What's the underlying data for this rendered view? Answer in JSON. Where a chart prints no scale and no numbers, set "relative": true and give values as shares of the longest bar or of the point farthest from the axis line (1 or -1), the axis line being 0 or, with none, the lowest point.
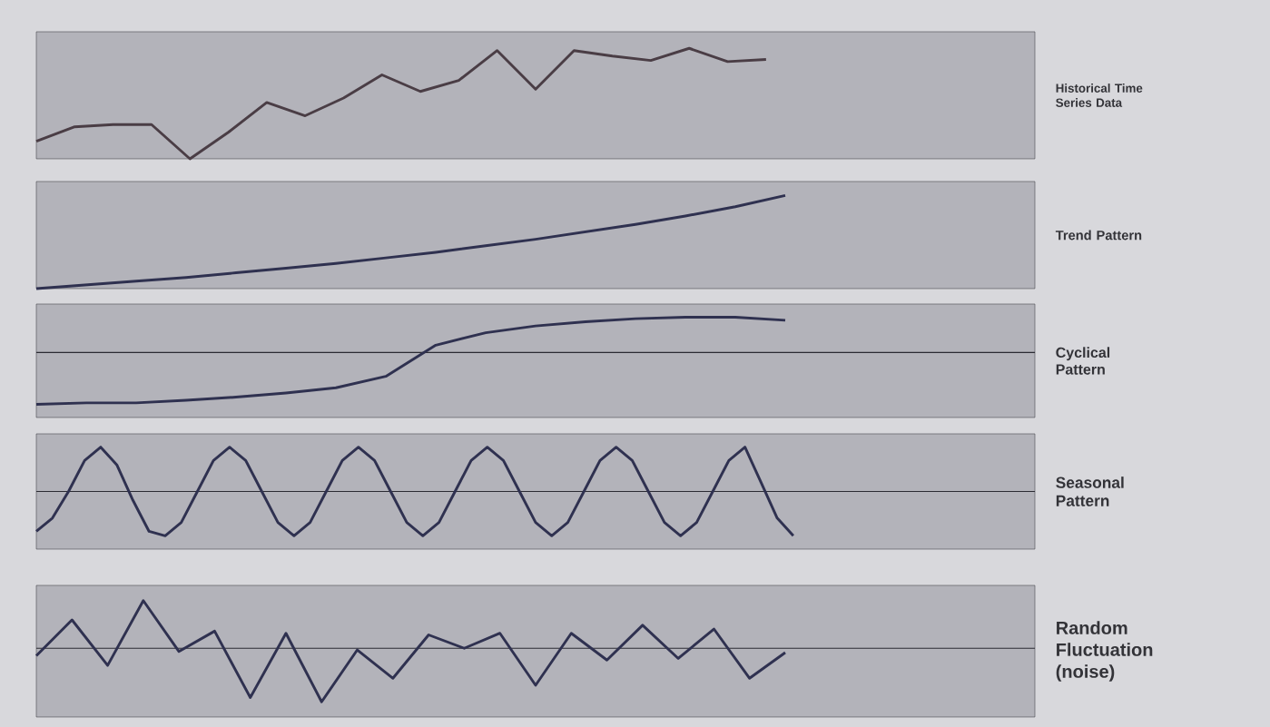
{
  "chart_data": [
    {
      "type": "line",
      "annotations": [
        "Historical Time Series Data"
      ],
      "relative": true,
      "color": "#4a3d45",
      "categories": [
        null,
        null,
        null,
        null,
        null,
        null,
        null,
        null,
        null,
        null,
        null,
        null,
        null,
        null,
        null,
        null,
        null,
        null,
        null,
        null,
        null,
        null,
        null,
        null,
        null,
        null,
        null
      ],
      "values": [
        0.16,
        0.29,
        0.31,
        0.31,
        0,
        0.24,
        0.51,
        0.39,
        0.55,
        0.76,
        0.61,
        0.71,
        0.98,
        0.63,
        0.98,
        0.93,
        0.89,
        1,
        0.88,
        0.9,
        null,
        null,
        null,
        null,
        null,
        null,
        null
      ]
    },
    {
      "type": "line",
      "annotations": [
        "Trend Pattern"
      ],
      "relative": true,
      "color": "#2f3150",
      "categories": [
        null,
        null,
        null,
        null,
        null,
        null,
        null,
        null,
        null,
        null,
        null,
        null,
        null,
        null,
        null,
        null,
        null,
        null,
        null,
        null,
        null
      ],
      "values": [
        0,
        0.04,
        0.08,
        0.12,
        0.17,
        0.22,
        0.27,
        0.33,
        0.39,
        0.46,
        0.53,
        0.61,
        0.69,
        0.78,
        0.88,
        1,
        null,
        null,
        null,
        null,
        null
      ]
    },
    {
      "type": "line",
      "annotations": [
        "Cyclical Pattern"
      ],
      "relative": true,
      "color": "#2f3150",
      "categories": [
        null,
        null,
        null,
        null,
        null,
        null,
        null,
        null,
        null,
        null,
        null,
        null,
        null,
        null,
        null,
        null,
        null,
        null,
        null,
        null,
        null
      ],
      "values": [
        -1,
        -0.97,
        -0.97,
        -0.92,
        -0.86,
        -0.78,
        -0.68,
        -0.46,
        0.14,
        0.38,
        0.51,
        0.59,
        0.65,
        0.68,
        0.68,
        0.62,
        null,
        null,
        null,
        null,
        null
      ],
      "ref_lines": [
        {
          "axis": "y",
          "value": 0,
          "color": "#2b2b33"
        }
      ]
    },
    {
      "type": "line",
      "annotations": [
        "Seasonal Pattern"
      ],
      "relative": true,
      "color": "#2f3150",
      "categories": [
        null,
        null,
        null,
        null,
        null,
        null,
        null,
        null,
        null,
        null,
        null,
        null,
        null,
        null,
        null,
        null,
        null,
        null,
        null,
        null,
        null,
        null,
        null,
        null,
        null,
        null,
        null,
        null,
        null,
        null,
        null,
        null,
        null,
        null,
        null,
        null,
        null,
        null,
        null,
        null,
        null,
        null,
        null,
        null,
        null,
        null,
        null,
        null,
        null,
        null,
        null,
        null,
        null,
        null,
        null,
        null,
        null,
        null,
        null,
        null,
        null,
        null,
        null
      ],
      "values": [
        -0.9,
        -0.6,
        0,
        0.7,
        1,
        0.6,
        -0.2,
        -0.9,
        -1,
        -0.7,
        0,
        0.7,
        1,
        0.7,
        0,
        -0.7,
        -1,
        -0.7,
        0,
        0.7,
        1,
        0.7,
        0,
        -0.7,
        -1,
        -0.7,
        0,
        0.7,
        1,
        0.7,
        0,
        -0.7,
        -1,
        -0.7,
        0,
        0.7,
        1,
        0.7,
        0,
        -0.7,
        -1,
        -0.7,
        0,
        0.7,
        1,
        0.2,
        -0.6,
        -1,
        null,
        null,
        null,
        null,
        null,
        null,
        null,
        null,
        null,
        null,
        null,
        null,
        null,
        null,
        null
      ],
      "ref_lines": [
        {
          "axis": "y",
          "value": 0,
          "color": "#2b2b33"
        }
      ]
    },
    {
      "type": "line",
      "annotations": [
        "Random Fluctuation (noise)"
      ],
      "relative": true,
      "color": "#2f3150",
      "categories": [
        null,
        null,
        null,
        null,
        null,
        null,
        null,
        null,
        null,
        null,
        null,
        null,
        null,
        null,
        null,
        null,
        null,
        null,
        null,
        null,
        null,
        null,
        null,
        null,
        null,
        null,
        null,
        null,
        null
      ],
      "values": [
        -0.14,
        0.53,
        -0.32,
        0.89,
        -0.06,
        0.32,
        -0.92,
        0.28,
        -1,
        -0.03,
        -0.56,
        0.25,
        0,
        0.28,
        -0.69,
        0.28,
        -0.22,
        0.43,
        -0.19,
        0.36,
        -0.56,
        -0.08,
        null,
        null,
        null,
        null,
        null,
        null,
        null
      ],
      "ref_lines": [
        {
          "axis": "y",
          "value": 0,
          "color": "#2b2b33"
        }
      ]
    }
  ]
}
